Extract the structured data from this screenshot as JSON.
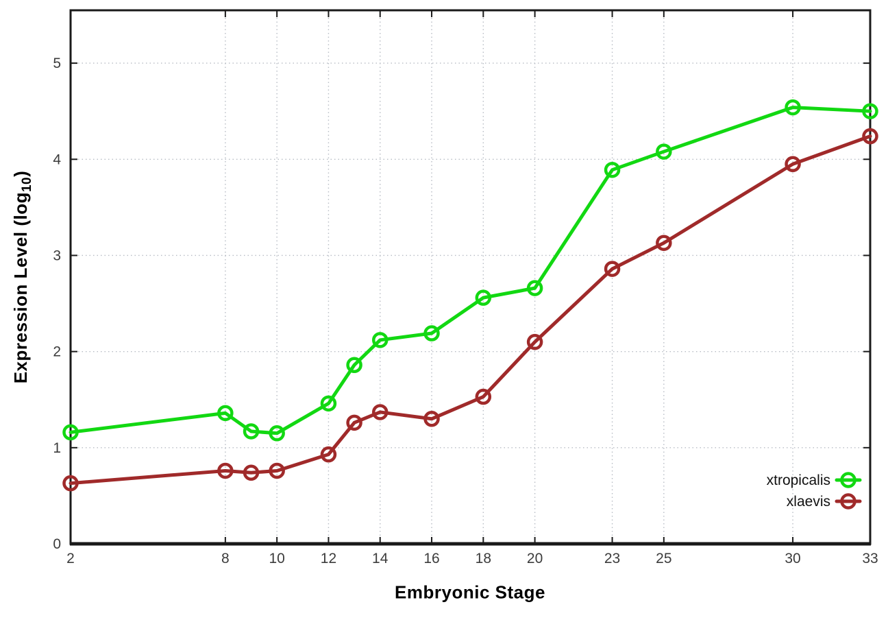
{
  "figure": {
    "xlabel": "Embryonic Stage",
    "ylabel_parts": {
      "prefix": "Expression Level (log",
      "subscript": "10",
      "suffix": ")"
    }
  },
  "chart_data": {
    "type": "line",
    "title": "",
    "xlabel": "Embryonic Stage",
    "ylabel": "Expression Level (log10)",
    "x": [
      2,
      8,
      9,
      10,
      12,
      13,
      14,
      16,
      18,
      20,
      23,
      25,
      30,
      33
    ],
    "series": [
      {
        "name": "xtropicalis",
        "color": "#12d812",
        "marker": "open-circle",
        "values": [
          1.16,
          1.36,
          1.17,
          1.15,
          1.46,
          1.86,
          2.12,
          2.19,
          2.56,
          2.66,
          3.89,
          4.08,
          4.54,
          4.5
        ]
      },
      {
        "name": "xlaevis",
        "color": "#a02a2a",
        "marker": "open-circle",
        "values": [
          0.63,
          0.76,
          0.74,
          0.76,
          0.93,
          1.26,
          1.37,
          1.3,
          1.53,
          2.1,
          2.86,
          3.13,
          3.95,
          4.24
        ]
      }
    ],
    "xticks": [
      2,
      8,
      10,
      12,
      14,
      16,
      18,
      20,
      23,
      25,
      30,
      33
    ],
    "yticks": [
      0,
      1,
      2,
      3,
      4,
      5
    ],
    "xlim": [
      2,
      33
    ],
    "ylim": [
      0,
      5.55
    ],
    "grid": true,
    "legend_position": "inside-bottom-right",
    "colors": {
      "axis": "#1a1a1a",
      "grid": "#b7bcc4",
      "tick_text": "#3c3c3c",
      "legend_text": "#111111"
    }
  }
}
